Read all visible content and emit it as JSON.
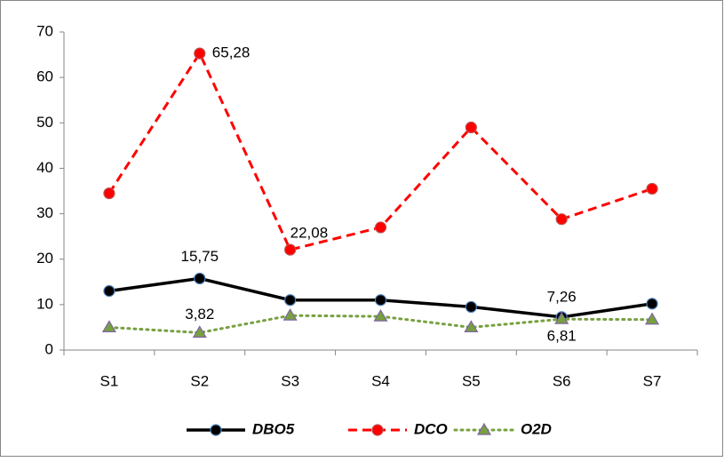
{
  "chart_data": {
    "type": "line",
    "categories": [
      "S1",
      "S2",
      "S3",
      "S4",
      "S5",
      "S6",
      "S7"
    ],
    "series": [
      {
        "name": "DBO5",
        "color": "#000000",
        "values": [
          13,
          15.75,
          11,
          11,
          9.5,
          7.26,
          10.2
        ],
        "value_labels": [
          null,
          "15,75",
          null,
          null,
          null,
          "7,26",
          null
        ]
      },
      {
        "name": "DCO",
        "color": "#ff0000",
        "values": [
          34.5,
          65.28,
          22.08,
          27,
          49,
          28.8,
          35.5
        ],
        "value_labels": [
          null,
          "65,28",
          "22,08",
          null,
          null,
          null,
          null
        ]
      },
      {
        "name": "O2D",
        "color": "#77a040",
        "values": [
          5,
          3.82,
          7.6,
          7.4,
          5,
          6.81,
          6.7
        ],
        "value_labels": [
          null,
          "3,82",
          null,
          null,
          null,
          "6,81",
          null
        ]
      }
    ],
    "ylim": [
      0,
      70
    ],
    "yticks": [
      0,
      10,
      20,
      30,
      40,
      50,
      60,
      70
    ],
    "grid": false,
    "legend": "bottom"
  }
}
